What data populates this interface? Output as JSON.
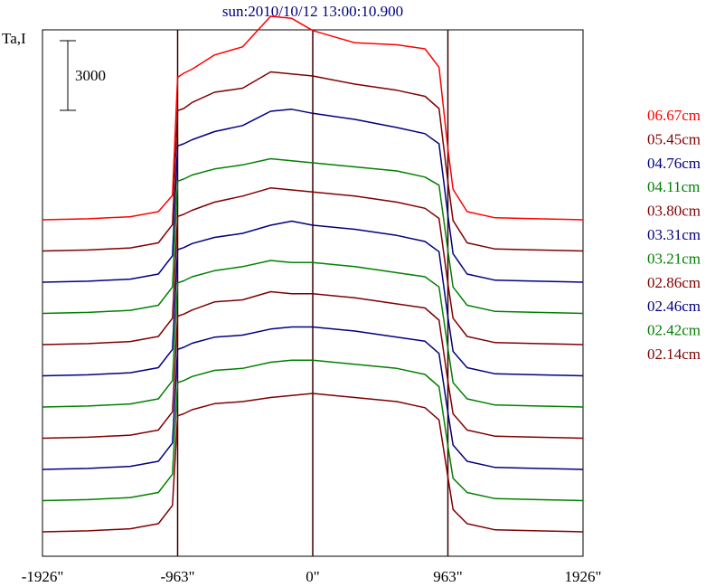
{
  "chart_data": {
    "type": "line",
    "title": "sun:2010/10/12 13:00:10.900",
    "ylabel": "Ta,I",
    "scale_bar_label": "3000",
    "scale_bar_value": 3000,
    "xlim": [
      -1926,
      1926
    ],
    "x_ticks": [
      {
        "value": -1926,
        "label": "-1926\""
      },
      {
        "value": -963,
        "label": "-963\""
      },
      {
        "value": 0,
        "label": "0\""
      },
      {
        "value": 963,
        "label": "963\""
      },
      {
        "value": 1926,
        "label": "1926\""
      }
    ],
    "vertical_lines_at": [
      -963,
      0,
      963
    ],
    "x": [
      -1926,
      -1600,
      -1300,
      -1100,
      -1000,
      -963,
      -920,
      -860,
      -700,
      -500,
      -300,
      -150,
      0,
      300,
      600,
      800,
      900,
      963,
      1000,
      1100,
      1300,
      1600,
      1926
    ],
    "series": [
      {
        "name": "06.67cm",
        "color": "#ff0000",
        "values": [
          0,
          50,
          150,
          400,
          1200,
          7000,
          7200,
          7400,
          8100,
          8500,
          10000,
          9900,
          9300,
          8700,
          8600,
          8400,
          7500,
          3500,
          1500,
          400,
          100,
          50,
          0
        ]
      },
      {
        "name": "05.45cm",
        "color": "#800000",
        "values": [
          0,
          50,
          150,
          400,
          1300,
          6900,
          7000,
          7300,
          7800,
          8000,
          8800,
          8700,
          8600,
          8200,
          7900,
          7600,
          7000,
          3400,
          1500,
          400,
          100,
          50,
          0
        ]
      },
      {
        "name": "04.76cm",
        "color": "#000080",
        "values": [
          0,
          50,
          150,
          400,
          1300,
          6700,
          6800,
          7000,
          7400,
          7700,
          8400,
          8500,
          8300,
          8000,
          7600,
          7300,
          6800,
          3300,
          1400,
          400,
          100,
          50,
          0
        ]
      },
      {
        "name": "04.11cm",
        "color": "#008000",
        "values": [
          0,
          50,
          150,
          400,
          1300,
          6500,
          6600,
          6800,
          7100,
          7300,
          7600,
          7500,
          7400,
          7200,
          7000,
          6700,
          6300,
          3100,
          1300,
          400,
          100,
          50,
          0
        ]
      },
      {
        "name": "03.80cm",
        "color": "#800000",
        "values": [
          0,
          50,
          150,
          400,
          1300,
          6300,
          6400,
          6600,
          7000,
          7300,
          7700,
          7600,
          7500,
          7300,
          7000,
          6700,
          6200,
          3000,
          1300,
          400,
          100,
          50,
          0
        ]
      },
      {
        "name": "03.31cm",
        "color": "#000080",
        "values": [
          0,
          50,
          150,
          400,
          1300,
          6200,
          6300,
          6500,
          6800,
          7000,
          7400,
          7600,
          7400,
          7200,
          6900,
          6600,
          6100,
          2900,
          1200,
          400,
          100,
          50,
          0
        ]
      },
      {
        "name": "03.21cm",
        "color": "#008000",
        "values": [
          0,
          50,
          150,
          400,
          1300,
          6100,
          6200,
          6400,
          6700,
          6900,
          7200,
          7100,
          7100,
          6900,
          6600,
          6400,
          5900,
          2900,
          1200,
          400,
          100,
          50,
          0
        ]
      },
      {
        "name": "02.86cm",
        "color": "#800000",
        "values": [
          0,
          50,
          150,
          400,
          1300,
          6000,
          6100,
          6300,
          6700,
          6800,
          7200,
          7100,
          7100,
          6900,
          6600,
          6400,
          5800,
          2800,
          1200,
          400,
          100,
          50,
          0
        ]
      },
      {
        "name": "02.46cm",
        "color": "#000080",
        "values": [
          0,
          50,
          150,
          400,
          1300,
          5900,
          6000,
          6200,
          6500,
          6600,
          6900,
          7000,
          7000,
          6800,
          6500,
          6300,
          5700,
          2800,
          1200,
          400,
          100,
          50,
          0
        ]
      },
      {
        "name": "02.42cm",
        "color": "#008000",
        "values": [
          0,
          50,
          150,
          400,
          1300,
          5800,
          5900,
          6100,
          6400,
          6500,
          6800,
          6900,
          6900,
          6700,
          6500,
          6200,
          5600,
          2700,
          1100,
          400,
          100,
          50,
          0
        ]
      },
      {
        "name": "02.14cm",
        "color": "#800000",
        "values": [
          0,
          50,
          150,
          400,
          1300,
          5700,
          5800,
          6000,
          6300,
          6400,
          6600,
          6700,
          6800,
          6600,
          6400,
          6100,
          5500,
          2700,
          1100,
          400,
          100,
          50,
          0
        ]
      }
    ],
    "legend_position": "right",
    "grid": false
  }
}
